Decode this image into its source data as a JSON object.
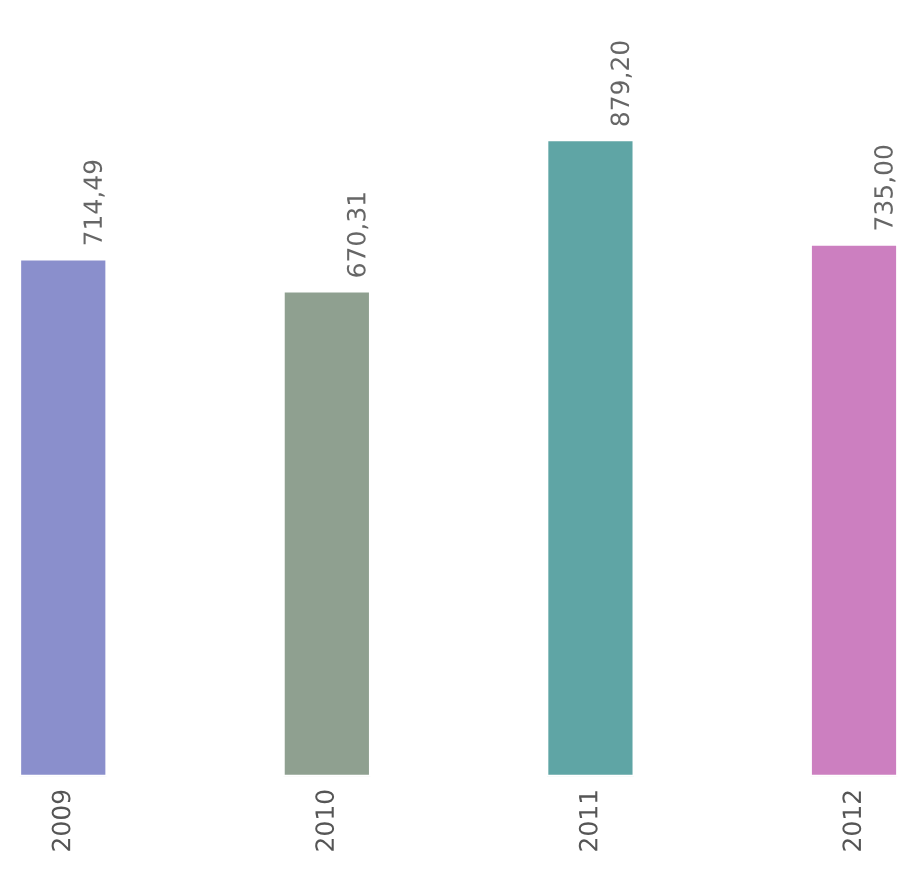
{
  "chart_data": {
    "type": "bar",
    "categories": [
      "2009",
      "2010",
      "2011",
      "2012"
    ],
    "values": [
      714.49,
      670.31,
      879.2,
      735.0
    ],
    "value_labels": [
      "714,49",
      "670,31",
      "879,20",
      "735,00"
    ],
    "colors": [
      "#8a8fcc",
      "#8fa090",
      "#5fa5a5",
      "#cc7fc0"
    ],
    "legend": false
  }
}
